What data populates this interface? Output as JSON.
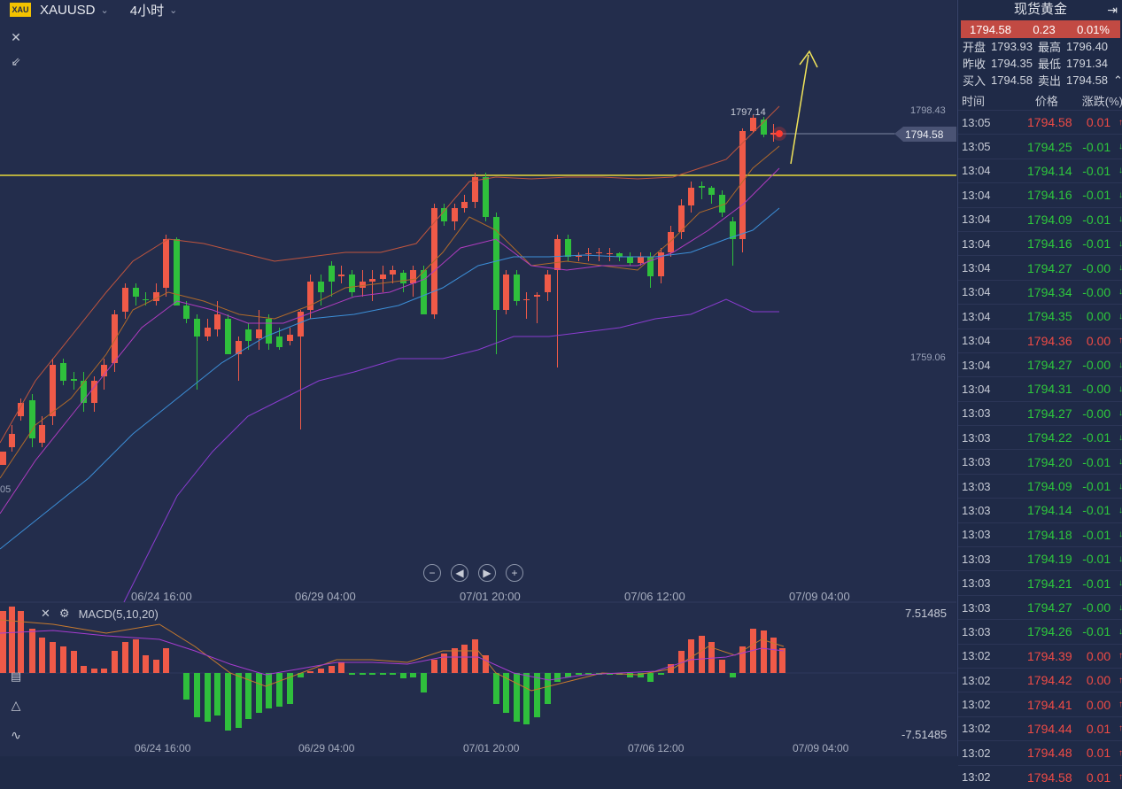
{
  "header": {
    "logo": "XAU",
    "symbol": "XAUUSD",
    "period": "4小时"
  },
  "chart": {
    "price_high_label": "1797.14",
    "current_price": "1794.58",
    "axis_right": [
      "1798.43",
      "1759.06"
    ],
    "axis_left_cut": "05",
    "x_labels": [
      "06/24 16:00",
      "06/29 04:00",
      "07/01 20:00",
      "07/06 12:00",
      "07/09 04:00"
    ],
    "macd_label": "MACD(5,10,20)",
    "macd_axis_top": "7.51485",
    "macd_axis_bottom": "-7.51485",
    "colors": {
      "up": "#ef5a48",
      "down": "#2fbf3c",
      "horizontal_line": "#e8d83a",
      "arrow": "#f1e45a"
    }
  },
  "panel": {
    "title": "现货黄金",
    "price": "1794.58",
    "change": "0.23",
    "change_pct": "0.01%",
    "open_label": "开盘",
    "open": "1793.93",
    "high_label": "最高",
    "high": "1796.40",
    "prev_label": "昨收",
    "prev": "1794.35",
    "low_label": "最低",
    "low": "1791.34",
    "bid_label": "买入",
    "bid": "1794.58",
    "ask_label": "卖出",
    "ask": "1794.58",
    "col_time": "时间",
    "col_price": "价格",
    "col_change": "涨跌(%)",
    "ticks": [
      {
        "t": "13:05",
        "p": "1794.58",
        "c": "0.01",
        "d": "up"
      },
      {
        "t": "13:05",
        "p": "1794.25",
        "c": "-0.01",
        "d": "dn"
      },
      {
        "t": "13:04",
        "p": "1794.14",
        "c": "-0.01",
        "d": "dn"
      },
      {
        "t": "13:04",
        "p": "1794.16",
        "c": "-0.01",
        "d": "dn"
      },
      {
        "t": "13:04",
        "p": "1794.09",
        "c": "-0.01",
        "d": "dn"
      },
      {
        "t": "13:04",
        "p": "1794.16",
        "c": "-0.01",
        "d": "dn"
      },
      {
        "t": "13:04",
        "p": "1794.27",
        "c": "-0.00",
        "d": "dn"
      },
      {
        "t": "13:04",
        "p": "1794.34",
        "c": "-0.00",
        "d": "dn"
      },
      {
        "t": "13:04",
        "p": "1794.35",
        "c": "0.00",
        "d": "dn"
      },
      {
        "t": "13:04",
        "p": "1794.36",
        "c": "0.00",
        "d": "up"
      },
      {
        "t": "13:04",
        "p": "1794.27",
        "c": "-0.00",
        "d": "dn"
      },
      {
        "t": "13:04",
        "p": "1794.31",
        "c": "-0.00",
        "d": "dn"
      },
      {
        "t": "13:03",
        "p": "1794.27",
        "c": "-0.00",
        "d": "dn"
      },
      {
        "t": "13:03",
        "p": "1794.22",
        "c": "-0.01",
        "d": "dn"
      },
      {
        "t": "13:03",
        "p": "1794.20",
        "c": "-0.01",
        "d": "dn"
      },
      {
        "t": "13:03",
        "p": "1794.09",
        "c": "-0.01",
        "d": "dn"
      },
      {
        "t": "13:03",
        "p": "1794.14",
        "c": "-0.01",
        "d": "dn"
      },
      {
        "t": "13:03",
        "p": "1794.18",
        "c": "-0.01",
        "d": "dn"
      },
      {
        "t": "13:03",
        "p": "1794.19",
        "c": "-0.01",
        "d": "dn"
      },
      {
        "t": "13:03",
        "p": "1794.21",
        "c": "-0.01",
        "d": "dn"
      },
      {
        "t": "13:03",
        "p": "1794.27",
        "c": "-0.00",
        "d": "dn"
      },
      {
        "t": "13:03",
        "p": "1794.26",
        "c": "-0.01",
        "d": "dn"
      },
      {
        "t": "13:02",
        "p": "1794.39",
        "c": "0.00",
        "d": "up"
      },
      {
        "t": "13:02",
        "p": "1794.42",
        "c": "0.00",
        "d": "up"
      },
      {
        "t": "13:02",
        "p": "1794.41",
        "c": "0.00",
        "d": "up"
      },
      {
        "t": "13:02",
        "p": "1794.44",
        "c": "0.01",
        "d": "up"
      },
      {
        "t": "13:02",
        "p": "1794.48",
        "c": "0.01",
        "d": "up"
      },
      {
        "t": "13:02",
        "p": "1794.58",
        "c": "0.01",
        "d": "up"
      }
    ]
  }
}
